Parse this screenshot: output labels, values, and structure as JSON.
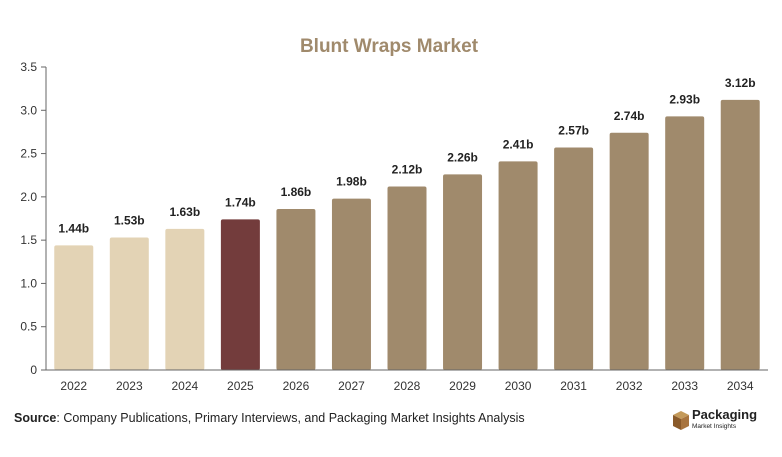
{
  "chart_data": {
    "type": "bar",
    "title": "Blunt Wraps Market",
    "categories": [
      "2022",
      "2023",
      "2024",
      "2025",
      "2026",
      "2027",
      "2028",
      "2029",
      "2030",
      "2031",
      "2032",
      "2033",
      "2034"
    ],
    "values": [
      1.44,
      1.53,
      1.63,
      1.74,
      1.86,
      1.98,
      2.12,
      2.26,
      2.41,
      2.57,
      2.74,
      2.93,
      3.12
    ],
    "data_labels": [
      "1.44b",
      "1.53b",
      "1.63b",
      "1.74b",
      "1.86b",
      "1.98b",
      "2.12b",
      "2.26b",
      "2.41b",
      "2.57b",
      "2.74b",
      "2.93b",
      "3.12b"
    ],
    "y_ticks": [
      "0",
      "0.5",
      "1.0",
      "1.5",
      "2.0",
      "2.5",
      "3.0",
      "3.5"
    ],
    "ylim": [
      0,
      3.5
    ],
    "xlabel": "",
    "ylabel": "",
    "grid": false,
    "colors": {
      "historical": "#e3d3b5",
      "current": "#733c3c",
      "forecast": "#a08a6c",
      "title": "#a08a6c"
    },
    "bar_color_groups": [
      "historical",
      "historical",
      "historical",
      "current",
      "forecast",
      "forecast",
      "forecast",
      "forecast",
      "forecast",
      "forecast",
      "forecast",
      "forecast",
      "forecast"
    ]
  },
  "source": {
    "label": "Source",
    "text": ": Company Publications, Primary Interviews, and Packaging Market Insights Analysis"
  },
  "logo": {
    "name": "Packaging",
    "tagline": "Market Insights",
    "icon": "box-icon"
  }
}
